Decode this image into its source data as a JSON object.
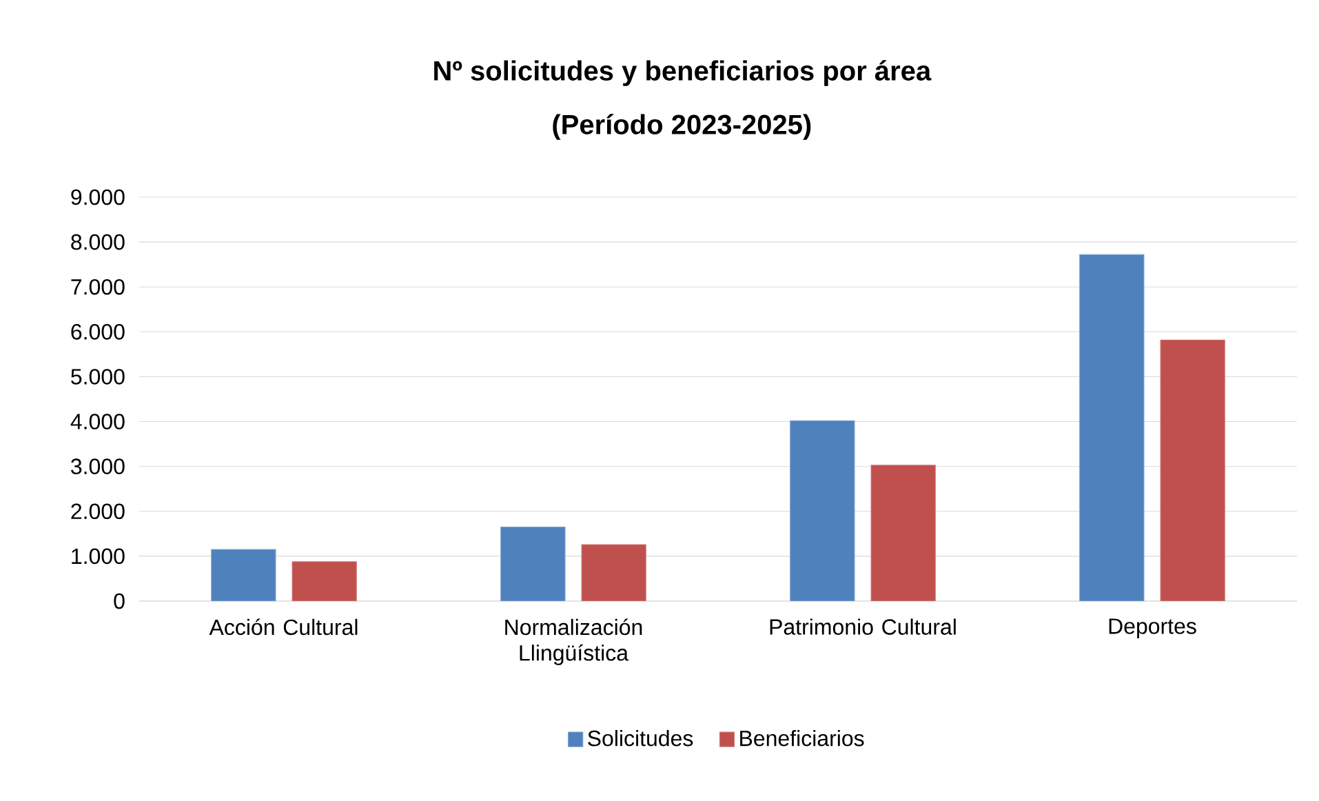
{
  "chart_data": {
    "type": "bar",
    "title": "Nº solicitudes y beneficiarios por área",
    "subtitle": "(Período 2023-2025)",
    "categories": [
      "Acción Cultural",
      "Normalización Llingüística",
      "Patrimonio Cultural",
      "Deportes"
    ],
    "series": [
      {
        "name": "Solicitudes",
        "color": "#4f81bd",
        "values": [
          1150,
          1650,
          4020,
          7720
        ]
      },
      {
        "name": "Beneficiarios",
        "color": "#c0504d",
        "values": [
          880,
          1260,
          3030,
          5820
        ]
      }
    ],
    "ylim": [
      0,
      9000
    ],
    "yticks": [
      {
        "value": 0,
        "label": "0"
      },
      {
        "value": 1000,
        "label": "1.000"
      },
      {
        "value": 2000,
        "label": "2.000"
      },
      {
        "value": 3000,
        "label": "3.000"
      },
      {
        "value": 4000,
        "label": "4.000"
      },
      {
        "value": 5000,
        "label": "5.000"
      },
      {
        "value": 6000,
        "label": "6.000"
      },
      {
        "value": 7000,
        "label": "7.000"
      },
      {
        "value": 8000,
        "label": "8.000"
      },
      {
        "value": 9000,
        "label": "9.000"
      }
    ],
    "grid": "y",
    "legend": "bottom"
  }
}
